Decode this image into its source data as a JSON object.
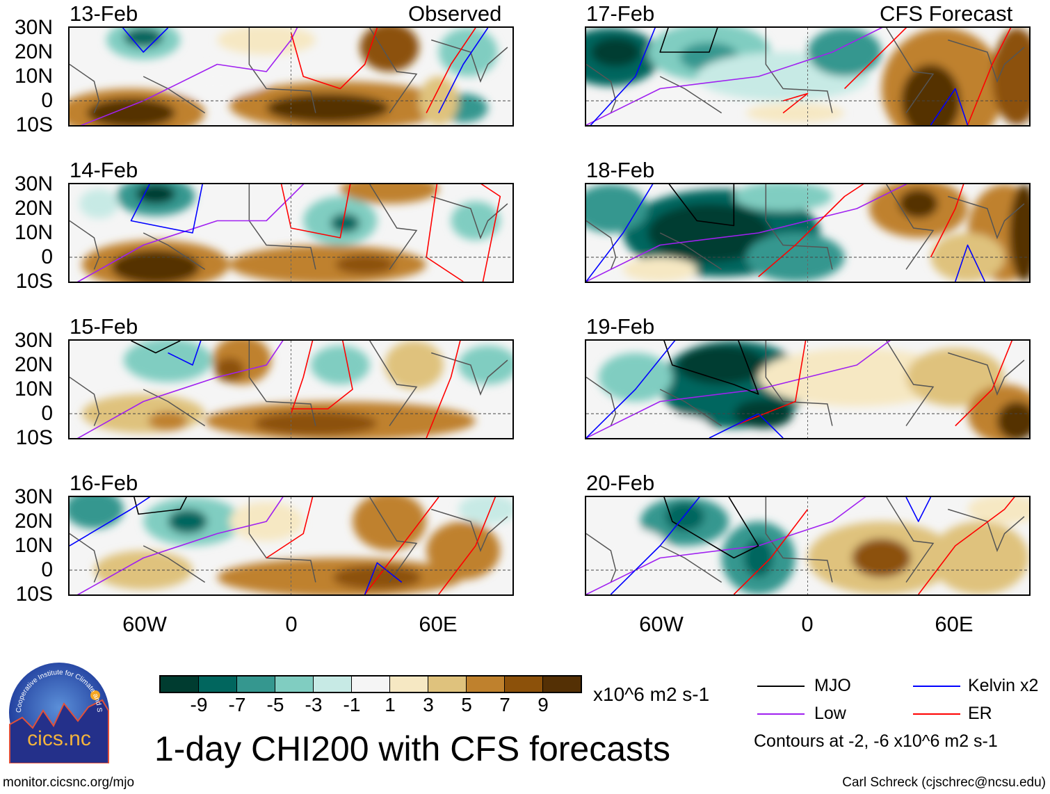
{
  "figure": {
    "title": "1-day CHI200 with CFS forecasts",
    "observed_label": "Observed",
    "forecast_label": "CFS Forecast",
    "url": "monitor.cicsnc.org/mjo",
    "author": "Carl Schreck (cjschrec@ncsu.edu)"
  },
  "panels": [
    {
      "date": "13-Feb",
      "type": "observed"
    },
    {
      "date": "14-Feb",
      "type": "observed"
    },
    {
      "date": "15-Feb",
      "type": "observed"
    },
    {
      "date": "16-Feb",
      "type": "observed"
    },
    {
      "date": "17-Feb",
      "type": "forecast"
    },
    {
      "date": "18-Feb",
      "type": "forecast"
    },
    {
      "date": "19-Feb",
      "type": "forecast"
    },
    {
      "date": "20-Feb",
      "type": "forecast"
    }
  ],
  "axes": {
    "lat_labels": [
      "30N",
      "20N",
      "10N",
      "0",
      "10S"
    ],
    "lon_labels": [
      "60W",
      "0",
      "60E"
    ]
  },
  "colorbar": {
    "units": "x10^6 m2 s-1",
    "labels": [
      "-9",
      "-7",
      "-5",
      "-3",
      "-1",
      "1",
      "3",
      "5",
      "7",
      "9"
    ],
    "colors": [
      "#003c30",
      "#01665e",
      "#35978f",
      "#80cdc1",
      "#c7eae5",
      "#f5f5f5",
      "#f6e8c3",
      "#dfc27d",
      "#bf812d",
      "#8c510a",
      "#543005"
    ]
  },
  "legend": {
    "items": [
      {
        "label": "MJO",
        "color": "#000000"
      },
      {
        "label": "Kelvin x2",
        "color": "#0000ff"
      },
      {
        "label": "Low",
        "color": "#a020f0"
      },
      {
        "label": "ER",
        "color": "#ff0000"
      }
    ],
    "note": "Contours at -2, -6 x10^6 m2 s-1"
  },
  "logo": {
    "name": "cics.nc",
    "ring_text": "Cooperative Institute for Climate and Satellites"
  }
}
